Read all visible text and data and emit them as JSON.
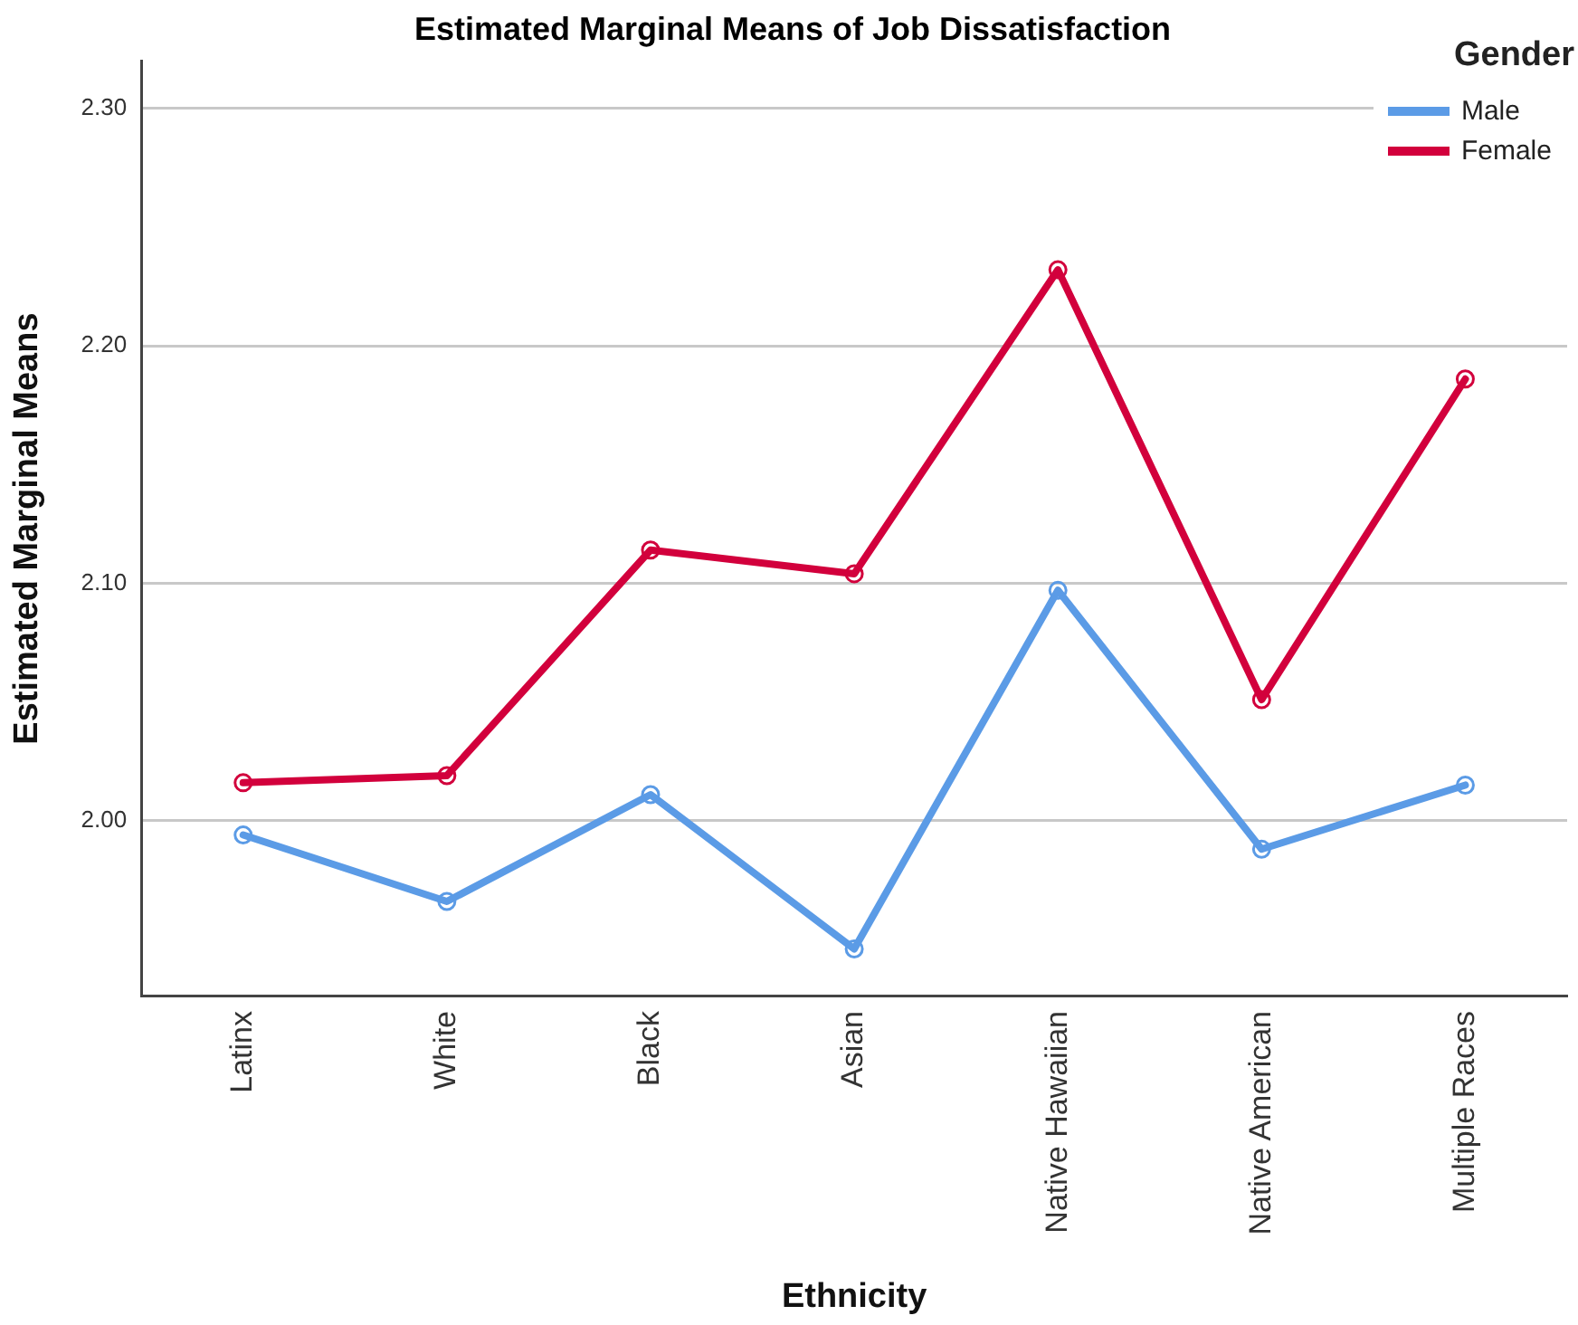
{
  "chart_data": {
    "type": "line",
    "title": "Estimated Marginal Means of Job Dissatisfaction",
    "xlabel": "Ethnicity",
    "ylabel": "Estimated Marginal Means",
    "legend_title": "Gender",
    "categories": [
      "Latinx",
      "White",
      "Black",
      "Asian",
      "Native Hawaiian",
      "Native American",
      "Multiple Races"
    ],
    "series": [
      {
        "name": "Male",
        "color": "#5b9be6",
        "values": [
          1.994,
          1.966,
          2.011,
          1.946,
          2.097,
          1.988,
          2.015
        ]
      },
      {
        "name": "Female",
        "color": "#d2003c",
        "values": [
          2.016,
          2.019,
          2.114,
          2.104,
          2.232,
          2.051,
          2.186
        ]
      }
    ],
    "ylim": [
      1.926,
      2.32
    ],
    "yticks": [
      {
        "value": 2.0,
        "label": "2.00"
      },
      {
        "value": 2.1,
        "label": "2.10"
      },
      {
        "value": 2.2,
        "label": "2.20"
      },
      {
        "value": 2.3,
        "label": "2.30"
      }
    ],
    "grid": "y",
    "legend": "top right",
    "marker": "circle",
    "line_style": "solid"
  }
}
